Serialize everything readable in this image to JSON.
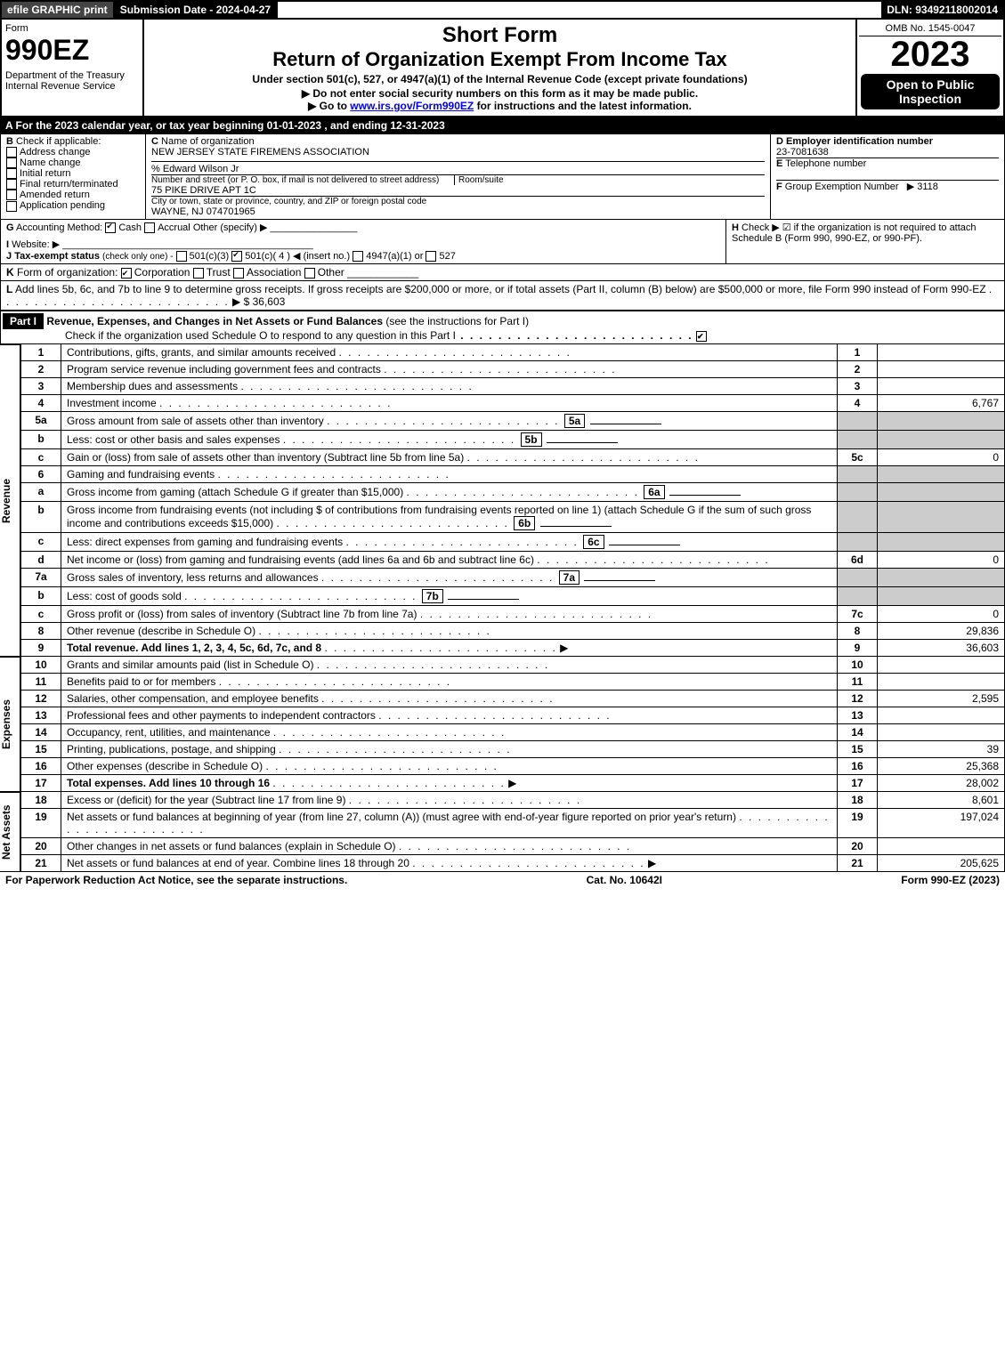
{
  "topbar": {
    "efile": "efile GRAPHIC print",
    "subdate": "Submission Date - 2024-04-27",
    "dln": "DLN: 93492118002014"
  },
  "hdr": {
    "form": "Form",
    "num": "990EZ",
    "dept": "Department of the Treasury",
    "irs": "Internal Revenue Service",
    "sf": "Short Form",
    "ret": "Return of Organization Exempt From Income Tax",
    "s1": "Under section 501(c), 527, or 4947(a)(1) of the Internal Revenue Code (except private foundations)",
    "s2": "▶ Do not enter social security numbers on this form as it may be made public.",
    "s3": "▶ Go to www.irs.gov/Form990EZ for instructions and the latest information.",
    "omb": "OMB No. 1545-0047",
    "year": "2023",
    "open": "Open to Public Inspection"
  },
  "A": "A  For the 2023 calendar year, or tax year beginning 01-01-2023 , and ending 12-31-2023",
  "B": {
    "lbl": "B",
    "t": "Check if applicable:",
    "o": [
      "Address change",
      "Name change",
      "Initial return",
      "Final return/terminated",
      "Amended return",
      "Application pending"
    ]
  },
  "C": {
    "lbl": "C",
    "t": "Name of organization",
    "name": "NEW JERSEY STATE FIREMENS ASSOCIATION",
    "care": "% Edward Wilson Jr",
    "addrlabel": "Number and street (or P. O. box, if mail is not delivered to street address)",
    "room": "Room/suite",
    "addr": "75 PIKE DRIVE APT 1C",
    "citylabel": "City or town, state or province, country, and ZIP or foreign postal code",
    "city": "WAYNE, NJ  074701965"
  },
  "D": {
    "lbl": "D",
    "t": "Employer identification number",
    "v": "23-7081638"
  },
  "E": {
    "lbl": "E",
    "t": "Telephone number",
    "v": ""
  },
  "F": {
    "lbl": "F",
    "t": "Group Exemption Number",
    "v": "▶ 3118"
  },
  "G": {
    "lbl": "G",
    "t": "Accounting Method:",
    "o": [
      "Cash",
      "Accrual"
    ],
    "other": "Other (specify) ▶",
    "checked": 0
  },
  "H": {
    "lbl": "H",
    "t": "Check ▶ ☑ if the organization is not required to attach Schedule B (Form 990, 990-EZ, or 990-PF)."
  },
  "I": {
    "lbl": "I",
    "t": "Website: ▶"
  },
  "J": {
    "lbl": "J",
    "t": "Tax-exempt status",
    "note": "(check only one) -",
    "o": [
      "501(c)(3)",
      "501(c)( 4 ) ◀ (insert no.)",
      "4947(a)(1) or",
      "527"
    ],
    "checked": 1
  },
  "K": {
    "lbl": "K",
    "t": "Form of organization:",
    "o": [
      "Corporation",
      "Trust",
      "Association",
      "Other"
    ],
    "checked": 0
  },
  "L": {
    "lbl": "L",
    "t": "Add lines 5b, 6c, and 7b to line 9 to determine gross receipts. If gross receipts are $200,000 or more, or if total assets (Part II, column (B) below) are $500,000 or more, file Form 990 instead of Form 990-EZ",
    "v": "▶ $ 36,603"
  },
  "part1": {
    "lbl": "Part I",
    "title": "Revenue, Expenses, and Changes in Net Assets or Fund Balances",
    "note": "(see the instructions for Part I)",
    "chk": "Check if the organization used Schedule O to respond to any question in this Part I"
  },
  "rev": [
    {
      "n": "1",
      "t": "Contributions, gifts, grants, and similar amounts received",
      "r": "1",
      "v": ""
    },
    {
      "n": "2",
      "t": "Program service revenue including government fees and contracts",
      "r": "2",
      "v": ""
    },
    {
      "n": "3",
      "t": "Membership dues and assessments",
      "r": "3",
      "v": ""
    },
    {
      "n": "4",
      "t": "Investment income",
      "r": "4",
      "v": "6,767"
    },
    {
      "n": "5a",
      "t": "Gross amount from sale of assets other than inventory",
      "ib": "5a",
      "shade": true
    },
    {
      "n": "b",
      "t": "Less: cost or other basis and sales expenses",
      "ib": "5b",
      "shade": true
    },
    {
      "n": "c",
      "t": "Gain or (loss) from sale of assets other than inventory (Subtract line 5b from line 5a)",
      "r": "5c",
      "v": "0"
    },
    {
      "n": "6",
      "t": "Gaming and fundraising events",
      "shade": true,
      "noval": true
    },
    {
      "n": "a",
      "t": "Gross income from gaming (attach Schedule G if greater than $15,000)",
      "ib": "6a",
      "shade": true
    },
    {
      "n": "b",
      "t": "Gross income from fundraising events (not including $                     of contributions from fundraising events reported on line 1) (attach Schedule G if the sum of such gross income and contributions exceeds $15,000)",
      "ib": "6b",
      "shade": true
    },
    {
      "n": "c",
      "t": "Less: direct expenses from gaming and fundraising events",
      "ib": "6c",
      "shade": true
    },
    {
      "n": "d",
      "t": "Net income or (loss) from gaming and fundraising events (add lines 6a and 6b and subtract line 6c)",
      "r": "6d",
      "v": "0"
    },
    {
      "n": "7a",
      "t": "Gross sales of inventory, less returns and allowances",
      "ib": "7a",
      "shade": true
    },
    {
      "n": "b",
      "t": "Less: cost of goods sold",
      "ib": "7b",
      "shade": true
    },
    {
      "n": "c",
      "t": "Gross profit or (loss) from sales of inventory (Subtract line 7b from line 7a)",
      "r": "7c",
      "v": "0"
    },
    {
      "n": "8",
      "t": "Other revenue (describe in Schedule O)",
      "r": "8",
      "v": "29,836"
    },
    {
      "n": "9",
      "t": "Total revenue. Add lines 1, 2, 3, 4, 5c, 6d, 7c, and 8",
      "r": "9",
      "v": "36,603",
      "arrow": true,
      "bold": true
    }
  ],
  "exp": [
    {
      "n": "10",
      "t": "Grants and similar amounts paid (list in Schedule O)",
      "r": "10",
      "v": ""
    },
    {
      "n": "11",
      "t": "Benefits paid to or for members",
      "r": "11",
      "v": ""
    },
    {
      "n": "12",
      "t": "Salaries, other compensation, and employee benefits",
      "r": "12",
      "v": "2,595"
    },
    {
      "n": "13",
      "t": "Professional fees and other payments to independent contractors",
      "r": "13",
      "v": ""
    },
    {
      "n": "14",
      "t": "Occupancy, rent, utilities, and maintenance",
      "r": "14",
      "v": ""
    },
    {
      "n": "15",
      "t": "Printing, publications, postage, and shipping",
      "r": "15",
      "v": "39"
    },
    {
      "n": "16",
      "t": "Other expenses (describe in Schedule O)",
      "r": "16",
      "v": "25,368"
    },
    {
      "n": "17",
      "t": "Total expenses. Add lines 10 through 16",
      "r": "17",
      "v": "28,002",
      "arrow": true,
      "bold": true
    }
  ],
  "net": [
    {
      "n": "18",
      "t": "Excess or (deficit) for the year (Subtract line 17 from line 9)",
      "r": "18",
      "v": "8,601"
    },
    {
      "n": "19",
      "t": "Net assets or fund balances at beginning of year (from line 27, column (A)) (must agree with end-of-year figure reported on prior year's return)",
      "r": "19",
      "v": "197,024"
    },
    {
      "n": "20",
      "t": "Other changes in net assets or fund balances (explain in Schedule O)",
      "r": "20",
      "v": ""
    },
    {
      "n": "21",
      "t": "Net assets or fund balances at end of year. Combine lines 18 through 20",
      "r": "21",
      "v": "205,625",
      "arrow": true
    }
  ],
  "sectionLabels": {
    "rev": "Revenue",
    "exp": "Expenses",
    "net": "Net Assets"
  },
  "ftr": {
    "l": "For Paperwork Reduction Act Notice, see the separate instructions.",
    "c": "Cat. No. 10642I",
    "r": "Form 990-EZ (2023)"
  }
}
